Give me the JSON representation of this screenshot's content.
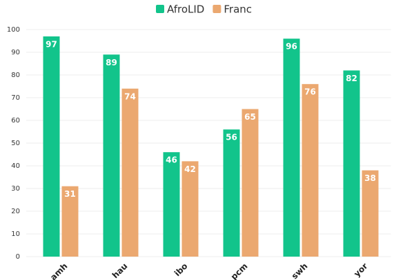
{
  "chart_data": {
    "type": "bar",
    "categories": [
      "amh",
      "hau",
      "ibo",
      "pcm",
      "swh",
      "yor"
    ],
    "series": [
      {
        "name": "AfroLID",
        "color": "#12c48b",
        "values": [
          97,
          89,
          46,
          56,
          96,
          82
        ]
      },
      {
        "name": "Franc",
        "color": "#eba870",
        "values": [
          31,
          74,
          42,
          65,
          76,
          38
        ]
      }
    ],
    "ylim": [
      0,
      100
    ],
    "yticks": [
      0,
      10,
      20,
      30,
      40,
      50,
      60,
      70,
      80,
      90,
      100
    ],
    "grid": true,
    "legend": "top"
  }
}
